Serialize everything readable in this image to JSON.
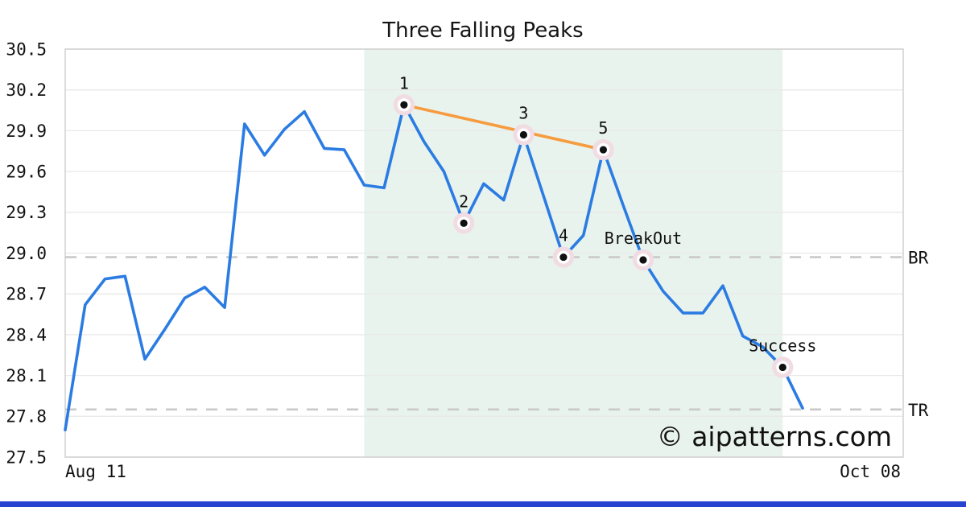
{
  "title": "Three Falling Peaks",
  "watermark": "© aipatterns.com",
  "x_axis": {
    "start_label": "Aug 11",
    "end_label": "Oct 08"
  },
  "levels": {
    "breakout_label": "BR",
    "target_label": "TR"
  },
  "colors": {
    "line": "#2b7ce2",
    "trendline": "#f79b3f",
    "shade": "#e9f3ee",
    "grid": "#e9e9e9",
    "border": "#d3d3d3",
    "dashed_level": "#c9c9c9",
    "marker_halo": "#f0dce2",
    "marker_ring": "#ffffff",
    "marker_dot": "#111111",
    "watermark": "#b9c0f2",
    "brand_bar": "#2743cf",
    "text": "#111111"
  },
  "chart_data": {
    "type": "line",
    "title": "Three Falling Peaks",
    "x_start": "Aug 11",
    "x_end": "Oct 08",
    "ylim": [
      27.5,
      30.5
    ],
    "y_ticks": [
      30.5,
      30.2,
      29.9,
      29.6,
      29.3,
      29.0,
      28.7,
      28.4,
      28.1,
      27.8,
      27.5
    ],
    "grid": "horizontal",
    "legend": "none",
    "series": [
      {
        "name": "price",
        "values": [
          27.7,
          28.62,
          28.81,
          28.83,
          28.22,
          28.44,
          28.67,
          28.75,
          28.6,
          29.95,
          29.72,
          29.91,
          30.04,
          29.77,
          29.76,
          29.5,
          29.48,
          30.09,
          29.82,
          29.6,
          29.22,
          29.51,
          29.39,
          29.87,
          29.42,
          28.97,
          29.13,
          29.76,
          29.35,
          28.95,
          28.72,
          28.56,
          28.56,
          28.76,
          28.39,
          28.31,
          28.16,
          27.86
        ]
      }
    ],
    "levels": [
      {
        "label": "BR",
        "value": 28.97,
        "style": "dashed"
      },
      {
        "label": "TR",
        "value": 27.85,
        "style": "dashed"
      }
    ],
    "annotations": [
      {
        "label": "1",
        "index": 17,
        "value": 30.09
      },
      {
        "label": "2",
        "index": 20,
        "value": 29.22
      },
      {
        "label": "3",
        "index": 23,
        "value": 29.87
      },
      {
        "label": "4",
        "index": 25,
        "value": 28.97
      },
      {
        "label": "5",
        "index": 27,
        "value": 29.76
      },
      {
        "label": "BreakOut",
        "index": 29,
        "value": 28.95
      },
      {
        "label": "Success",
        "index": 36,
        "value": 28.16
      }
    ],
    "trendline": {
      "from_index": 17,
      "to_index": 27
    },
    "shaded_region": {
      "from_index": 15,
      "to_index": 36
    }
  }
}
